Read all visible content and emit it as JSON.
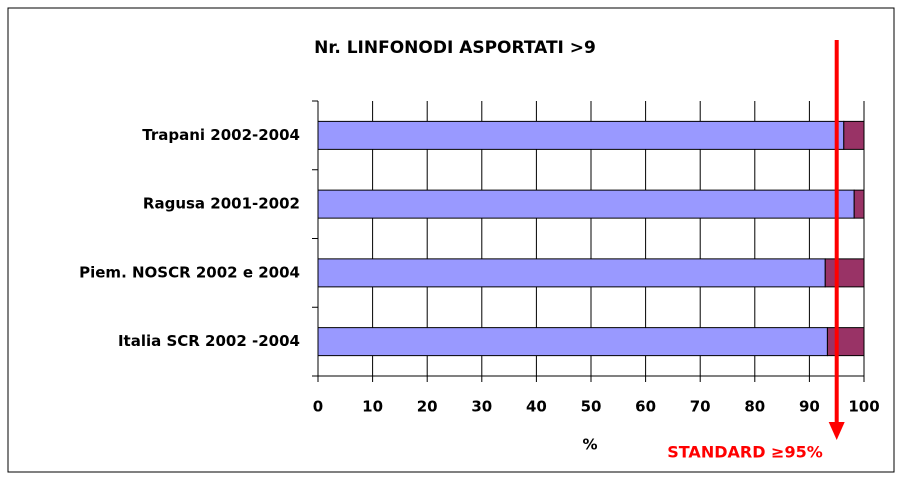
{
  "chart_data": {
    "type": "stacked-bar-horizontal",
    "title": "Nr. LINFONODI ASPORTATI >9",
    "x_label": "%",
    "categories": [
      "Trapani 2002-2004",
      "Ragusa 2001-2002",
      "Piem. NOSCR 2002 e 2004",
      "Italia SCR 2002 -2004"
    ],
    "series": [
      {
        "color": "#9999ff",
        "values": [
          96.3,
          98.2,
          92.9,
          93.3
        ]
      },
      {
        "color": "#993366",
        "values": [
          3.7,
          1.8,
          7.1,
          6.7
        ]
      }
    ],
    "xlim": [
      0,
      100
    ],
    "xticks": [
      0,
      10,
      20,
      30,
      40,
      50,
      60,
      70,
      80,
      90,
      100
    ],
    "grid": true,
    "annotation": {
      "text": "STANDARD ≥95%",
      "value": 95,
      "color": "#ff0000"
    }
  }
}
